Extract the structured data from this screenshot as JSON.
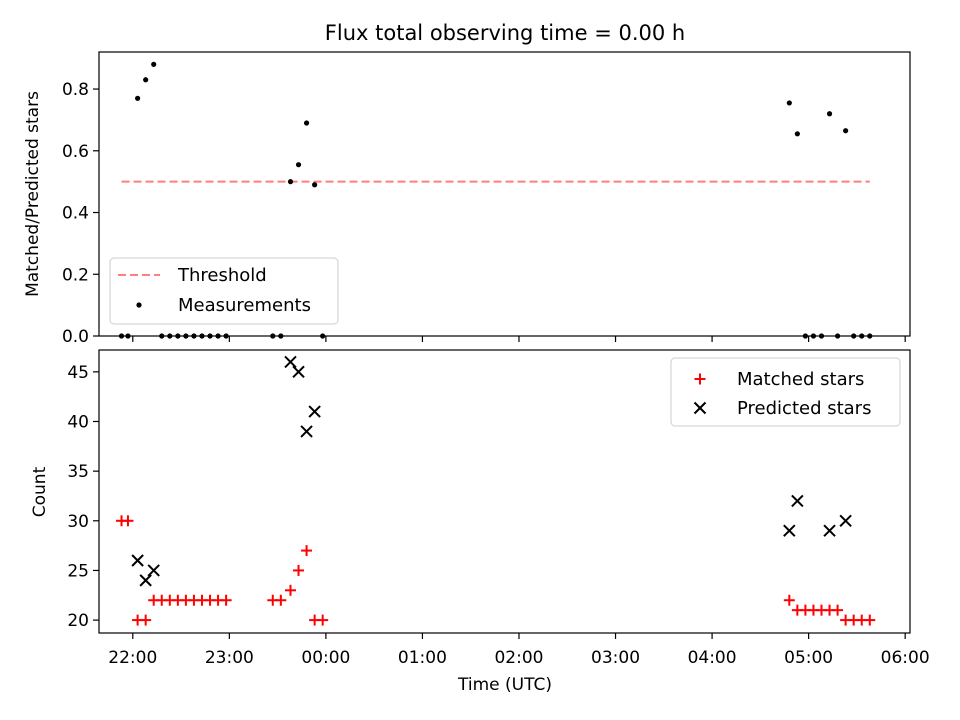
{
  "chart_data": [
    {
      "type": "scatter",
      "title": "Flux total observing time = 0.00 h",
      "xlabel": "",
      "ylabel": "Matched/Predicted stars",
      "xlim": [
        "21:39",
        "06:03"
      ],
      "ylim": [
        0,
        0.92
      ],
      "yticks": [
        0.0,
        0.2,
        0.4,
        0.6,
        0.8
      ],
      "ytick_labels": [
        "0.0",
        "0.2",
        "0.4",
        "0.6",
        "0.8"
      ],
      "xticks": [
        "22:00",
        "23:00",
        "00:00",
        "01:00",
        "02:00",
        "03:00",
        "04:00",
        "05:00",
        "06:00"
      ],
      "legend": {
        "position": "lower-left",
        "entries": [
          "Threshold",
          "Measurements"
        ]
      },
      "grid": false,
      "threshold": {
        "name": "Threshold",
        "value": 0.5,
        "x": [
          "21:53",
          "05:38"
        ],
        "color": "#ff7f7f",
        "style": "dashed"
      },
      "series": [
        {
          "name": "Measurements",
          "color": "#000000",
          "marker": "dot",
          "points": [
            {
              "x": "21:53",
              "y": 0
            },
            {
              "x": "21:57",
              "y": 0
            },
            {
              "x": "22:03",
              "y": 0.77
            },
            {
              "x": "22:08",
              "y": 0.83
            },
            {
              "x": "22:13",
              "y": 0.88
            },
            {
              "x": "22:18",
              "y": 0
            },
            {
              "x": "22:23",
              "y": 0
            },
            {
              "x": "22:28",
              "y": 0
            },
            {
              "x": "22:33",
              "y": 0
            },
            {
              "x": "22:38",
              "y": 0
            },
            {
              "x": "22:43",
              "y": 0
            },
            {
              "x": "22:48",
              "y": 0
            },
            {
              "x": "22:53",
              "y": 0
            },
            {
              "x": "22:58",
              "y": 0
            },
            {
              "x": "23:27",
              "y": 0
            },
            {
              "x": "23:32",
              "y": 0
            },
            {
              "x": "23:38",
              "y": 0.5
            },
            {
              "x": "23:43",
              "y": 0.555
            },
            {
              "x": "23:48",
              "y": 0.69
            },
            {
              "x": "23:53",
              "y": 0.49
            },
            {
              "x": "23:58",
              "y": 0
            },
            {
              "x": "04:48",
              "y": 0.755
            },
            {
              "x": "04:53",
              "y": 0.655
            },
            {
              "x": "04:58",
              "y": 0
            },
            {
              "x": "05:03",
              "y": 0
            },
            {
              "x": "05:08",
              "y": 0
            },
            {
              "x": "05:13",
              "y": 0.72
            },
            {
              "x": "05:18",
              "y": 0
            },
            {
              "x": "05:23",
              "y": 0.665
            },
            {
              "x": "05:28",
              "y": 0
            },
            {
              "x": "05:33",
              "y": 0
            },
            {
              "x": "05:38",
              "y": 0
            }
          ]
        }
      ]
    },
    {
      "type": "scatter",
      "title": "",
      "xlabel": "Time (UTC)",
      "ylabel": "Count",
      "xlim": [
        "21:39",
        "06:03"
      ],
      "ylim": [
        18.7,
        47.2
      ],
      "yticks": [
        20,
        25,
        30,
        35,
        40,
        45
      ],
      "ytick_labels": [
        "20",
        "25",
        "30",
        "35",
        "40",
        "45"
      ],
      "xticks": [
        "22:00",
        "23:00",
        "00:00",
        "01:00",
        "02:00",
        "03:00",
        "04:00",
        "05:00",
        "06:00"
      ],
      "legend": {
        "position": "top-right",
        "entries": [
          "Matched stars",
          "Predicted stars"
        ]
      },
      "grid": false,
      "series": [
        {
          "name": "Matched stars",
          "color": "#ff0000",
          "marker": "plus",
          "points": [
            {
              "x": "21:53",
              "y": 30
            },
            {
              "x": "21:57",
              "y": 30
            },
            {
              "x": "22:03",
              "y": 20
            },
            {
              "x": "22:08",
              "y": 20
            },
            {
              "x": "22:13",
              "y": 22
            },
            {
              "x": "22:18",
              "y": 22
            },
            {
              "x": "22:23",
              "y": 22
            },
            {
              "x": "22:28",
              "y": 22
            },
            {
              "x": "22:33",
              "y": 22
            },
            {
              "x": "22:38",
              "y": 22
            },
            {
              "x": "22:43",
              "y": 22
            },
            {
              "x": "22:48",
              "y": 22
            },
            {
              "x": "22:53",
              "y": 22
            },
            {
              "x": "22:58",
              "y": 22
            },
            {
              "x": "23:27",
              "y": 22
            },
            {
              "x": "23:32",
              "y": 22
            },
            {
              "x": "23:38",
              "y": 23
            },
            {
              "x": "23:43",
              "y": 25
            },
            {
              "x": "23:48",
              "y": 27
            },
            {
              "x": "23:53",
              "y": 20
            },
            {
              "x": "23:58",
              "y": 20
            },
            {
              "x": "04:48",
              "y": 22
            },
            {
              "x": "04:53",
              "y": 21
            },
            {
              "x": "04:58",
              "y": 21
            },
            {
              "x": "05:03",
              "y": 21
            },
            {
              "x": "05:08",
              "y": 21
            },
            {
              "x": "05:13",
              "y": 21
            },
            {
              "x": "05:18",
              "y": 21
            },
            {
              "x": "05:23",
              "y": 20
            },
            {
              "x": "05:28",
              "y": 20
            },
            {
              "x": "05:33",
              "y": 20
            },
            {
              "x": "05:38",
              "y": 20
            }
          ]
        },
        {
          "name": "Predicted stars",
          "color": "#000000",
          "marker": "x",
          "points": [
            {
              "x": "22:03",
              "y": 26
            },
            {
              "x": "22:08",
              "y": 24
            },
            {
              "x": "22:13",
              "y": 25
            },
            {
              "x": "23:38",
              "y": 46
            },
            {
              "x": "23:43",
              "y": 45
            },
            {
              "x": "23:48",
              "y": 39
            },
            {
              "x": "23:53",
              "y": 41
            },
            {
              "x": "04:48",
              "y": 29
            },
            {
              "x": "04:53",
              "y": 32
            },
            {
              "x": "05:13",
              "y": 29
            },
            {
              "x": "05:23",
              "y": 30
            }
          ]
        }
      ]
    }
  ]
}
